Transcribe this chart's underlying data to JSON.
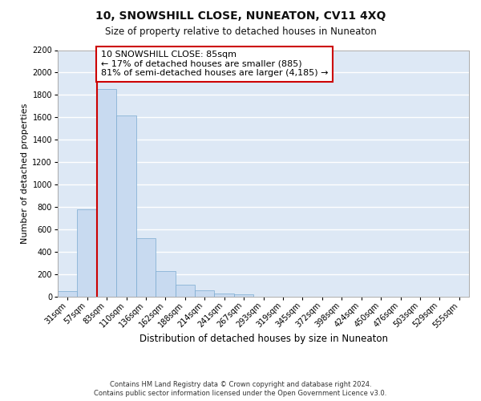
{
  "title": "10, SNOWSHILL CLOSE, NUNEATON, CV11 4XQ",
  "subtitle": "Size of property relative to detached houses in Nuneaton",
  "xlabel": "Distribution of detached houses by size in Nuneaton",
  "ylabel": "Number of detached properties",
  "categories": [
    "31sqm",
    "57sqm",
    "83sqm",
    "110sqm",
    "136sqm",
    "162sqm",
    "188sqm",
    "214sqm",
    "241sqm",
    "267sqm",
    "293sqm",
    "319sqm",
    "345sqm",
    "372sqm",
    "398sqm",
    "424sqm",
    "450sqm",
    "476sqm",
    "503sqm",
    "529sqm",
    "555sqm"
  ],
  "values": [
    50,
    780,
    1850,
    1620,
    520,
    230,
    105,
    55,
    30,
    20,
    0,
    0,
    0,
    0,
    0,
    0,
    0,
    0,
    0,
    0,
    0
  ],
  "bar_color": "#c8daf0",
  "bar_edge_color": "#7aaad0",
  "vline_index": 2,
  "vline_color": "#cc0000",
  "ylim": [
    0,
    2200
  ],
  "yticks": [
    0,
    200,
    400,
    600,
    800,
    1000,
    1200,
    1400,
    1600,
    1800,
    2000,
    2200
  ],
  "annotation_line1": "10 SNOWSHILL CLOSE: 85sqm",
  "annotation_line2": "← 17% of detached houses are smaller (885)",
  "annotation_line3": "81% of semi-detached houses are larger (4,185) →",
  "annotation_box_color": "white",
  "annotation_box_edge_color": "#cc0000",
  "footnote1": "Contains HM Land Registry data © Crown copyright and database right 2024.",
  "footnote2": "Contains public sector information licensed under the Open Government Licence v3.0.",
  "plot_bg_color": "#dde8f5",
  "grid_color": "white",
  "title_fontsize": 10,
  "subtitle_fontsize": 8.5,
  "tick_fontsize": 7,
  "ylabel_fontsize": 8,
  "xlabel_fontsize": 8.5,
  "annotation_fontsize": 8,
  "footnote_fontsize": 6
}
